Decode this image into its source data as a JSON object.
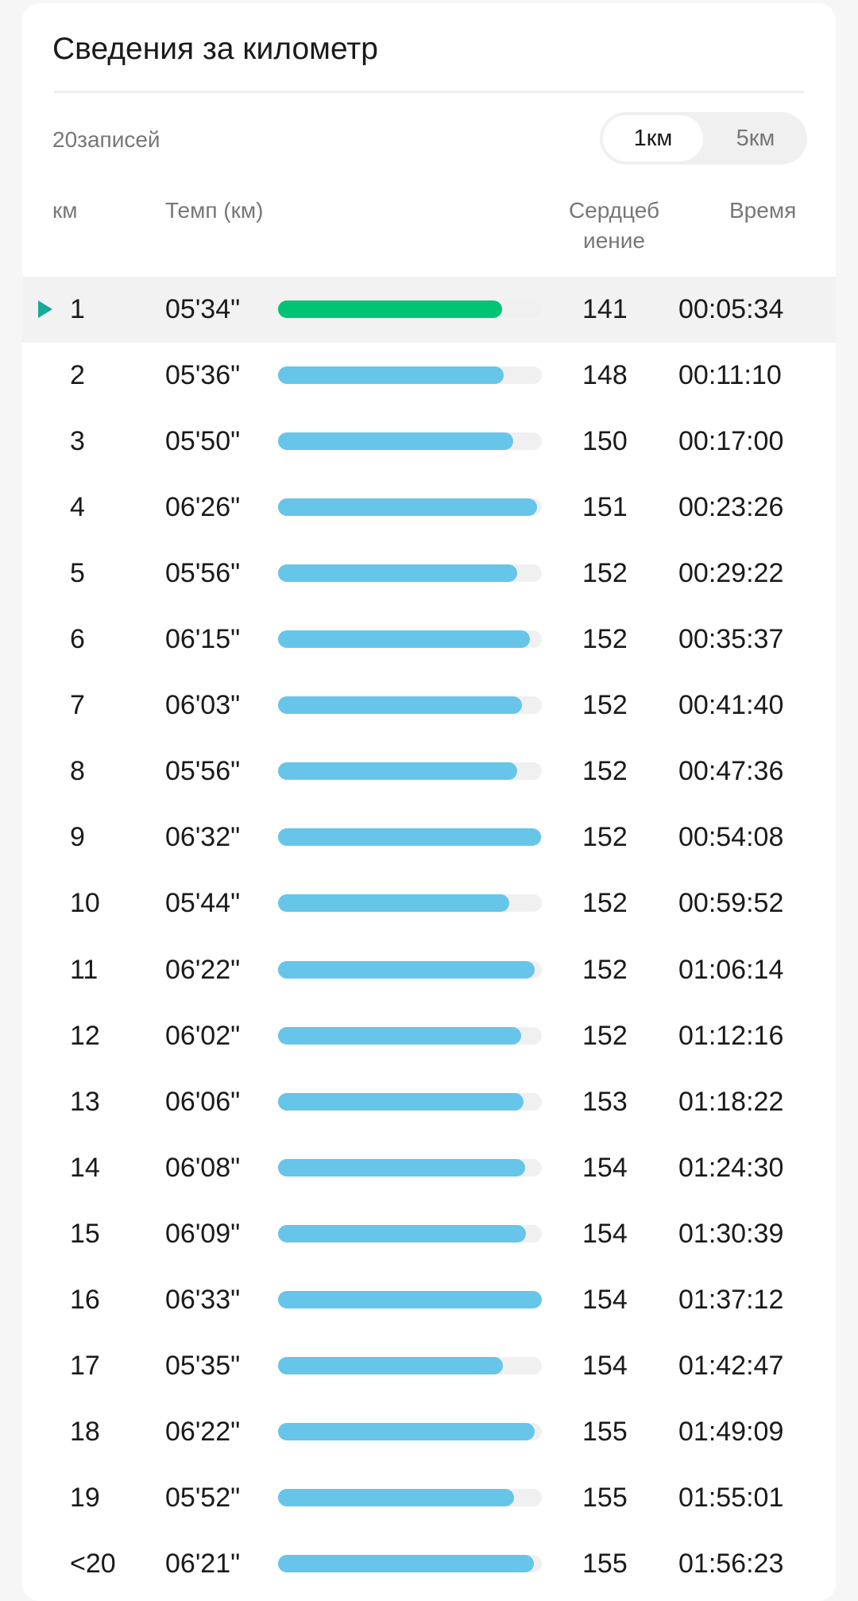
{
  "header": {
    "title": "Сведения за километр",
    "count": "20записей"
  },
  "toggle": {
    "options": [
      "1км",
      "5км"
    ],
    "selected": "1км"
  },
  "columns": {
    "km": "км",
    "pace": "Темп (км)",
    "heart_line1": "Сердцеб",
    "heart_line2": "иение",
    "time": "Время"
  },
  "colors": {
    "selected_bar": "#00c373",
    "bar": "#66c5e8",
    "track": "#f0f0f0",
    "marker": "#17a999"
  },
  "selected_row": 0,
  "rows": [
    {
      "km": "1",
      "pace": "05'34\"",
      "hr": "141",
      "time": "00:05:34"
    },
    {
      "km": "2",
      "pace": "05'36\"",
      "hr": "148",
      "time": "00:11:10"
    },
    {
      "km": "3",
      "pace": "05'50\"",
      "hr": "150",
      "time": "00:17:00"
    },
    {
      "km": "4",
      "pace": "06'26\"",
      "hr": "151",
      "time": "00:23:26"
    },
    {
      "km": "5",
      "pace": "05'56\"",
      "hr": "152",
      "time": "00:29:22"
    },
    {
      "km": "6",
      "pace": "06'15\"",
      "hr": "152",
      "time": "00:35:37"
    },
    {
      "km": "7",
      "pace": "06'03\"",
      "hr": "152",
      "time": "00:41:40"
    },
    {
      "km": "8",
      "pace": "05'56\"",
      "hr": "152",
      "time": "00:47:36"
    },
    {
      "km": "9",
      "pace": "06'32\"",
      "hr": "152",
      "time": "00:54:08"
    },
    {
      "km": "10",
      "pace": "05'44\"",
      "hr": "152",
      "time": "00:59:52"
    },
    {
      "km": "11",
      "pace": "06'22\"",
      "hr": "152",
      "time": "01:06:14"
    },
    {
      "km": "12",
      "pace": "06'02\"",
      "hr": "152",
      "time": "01:12:16"
    },
    {
      "km": "13",
      "pace": "06'06\"",
      "hr": "153",
      "time": "01:18:22"
    },
    {
      "km": "14",
      "pace": "06'08\"",
      "hr": "154",
      "time": "01:24:30"
    },
    {
      "km": "15",
      "pace": "06'09\"",
      "hr": "154",
      "time": "01:30:39"
    },
    {
      "km": "16",
      "pace": "06'33\"",
      "hr": "154",
      "time": "01:37:12"
    },
    {
      "km": "17",
      "pace": "05'35\"",
      "hr": "154",
      "time": "01:42:47"
    },
    {
      "km": "18",
      "pace": "06'22\"",
      "hr": "155",
      "time": "01:49:09"
    },
    {
      "km": "19",
      "pace": "05'52\"",
      "hr": "155",
      "time": "01:55:01"
    },
    {
      "km": "<20",
      "pace": "06'21\"",
      "hr": "155",
      "time": "01:56:23"
    }
  ]
}
